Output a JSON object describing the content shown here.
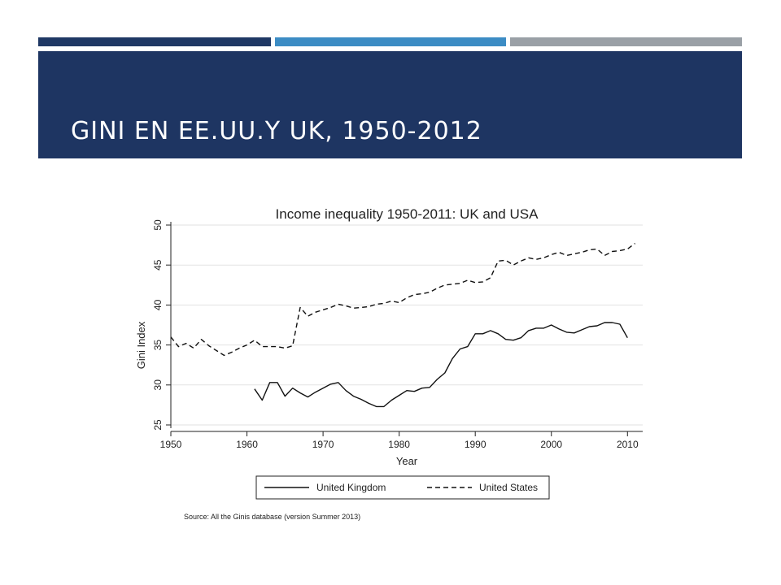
{
  "slide": {
    "title": "GINI EN EE.UU.Y UK, 1950-2012",
    "colors": {
      "bar1": "#1f3864",
      "bar2": "#3c8cc4",
      "bar3": "#9aa0a6",
      "header_bg": "#1e3562"
    }
  },
  "chart_data": {
    "type": "line",
    "title": "Income inequality 1950-2011: UK and USA",
    "xlabel": "Year",
    "ylabel": "Gini Index",
    "xlim": [
      1950,
      2012
    ],
    "ylim": [
      25,
      50
    ],
    "xticks": [
      1950,
      1960,
      1970,
      1980,
      1990,
      2000,
      2010
    ],
    "yticks": [
      25,
      30,
      35,
      40,
      45,
      50
    ],
    "grid": true,
    "legend_position": "bottom",
    "source": "Source:  All the Ginis database (version Summer 2013)",
    "series": [
      {
        "name": "United Kingdom",
        "style": "solid",
        "x": [
          1961,
          1962,
          1963,
          1964,
          1965,
          1966,
          1967,
          1968,
          1969,
          1970,
          1971,
          1972,
          1973,
          1974,
          1975,
          1976,
          1977,
          1978,
          1979,
          1980,
          1981,
          1982,
          1983,
          1984,
          1985,
          1986,
          1987,
          1988,
          1989,
          1990,
          1991,
          1992,
          1993,
          1994,
          1995,
          1996,
          1997,
          1998,
          1999,
          2000,
          2001,
          2002,
          2003,
          2004,
          2005,
          2006,
          2007,
          2008,
          2009,
          2010
        ],
        "y": [
          29.5,
          28.1,
          30.3,
          30.3,
          28.6,
          29.6,
          29.0,
          28.5,
          29.1,
          29.6,
          30.1,
          30.3,
          29.3,
          28.6,
          28.2,
          27.7,
          27.3,
          27.3,
          28.1,
          28.7,
          29.3,
          29.2,
          29.6,
          29.7,
          30.7,
          31.5,
          33.3,
          34.5,
          34.8,
          36.4,
          36.4,
          36.8,
          36.4,
          35.7,
          35.6,
          35.9,
          36.8,
          37.1,
          37.1,
          37.5,
          37.0,
          36.6,
          36.5,
          36.9,
          37.3,
          37.4,
          37.8,
          37.8,
          37.6,
          35.9
        ]
      },
      {
        "name": "United States",
        "style": "dashed",
        "x": [
          1950,
          1951,
          1952,
          1953,
          1954,
          1955,
          1956,
          1957,
          1958,
          1959,
          1960,
          1961,
          1962,
          1963,
          1964,
          1965,
          1966,
          1967,
          1968,
          1969,
          1970,
          1971,
          1972,
          1973,
          1974,
          1975,
          1976,
          1977,
          1978,
          1979,
          1980,
          1981,
          1982,
          1983,
          1984,
          1985,
          1986,
          1987,
          1988,
          1989,
          1990,
          1991,
          1992,
          1993,
          1994,
          1995,
          1996,
          1997,
          1998,
          1999,
          2000,
          2001,
          2002,
          2003,
          2004,
          2005,
          2006,
          2007,
          2008,
          2009,
          2010,
          2011
        ],
        "y": [
          36.0,
          34.8,
          35.2,
          34.6,
          35.7,
          34.9,
          34.3,
          33.7,
          34.1,
          34.6,
          35.0,
          35.6,
          34.8,
          34.8,
          34.8,
          34.6,
          34.9,
          39.7,
          38.6,
          39.1,
          39.4,
          39.7,
          40.1,
          39.9,
          39.6,
          39.7,
          39.8,
          40.1,
          40.2,
          40.5,
          40.3,
          40.9,
          41.3,
          41.4,
          41.6,
          42.1,
          42.5,
          42.6,
          42.7,
          43.1,
          42.8,
          42.9,
          43.4,
          45.5,
          45.6,
          45.0,
          45.5,
          45.9,
          45.7,
          45.9,
          46.3,
          46.6,
          46.2,
          46.4,
          46.6,
          46.9,
          47.0,
          46.2,
          46.7,
          46.8,
          47.0,
          47.7
        ]
      }
    ]
  }
}
